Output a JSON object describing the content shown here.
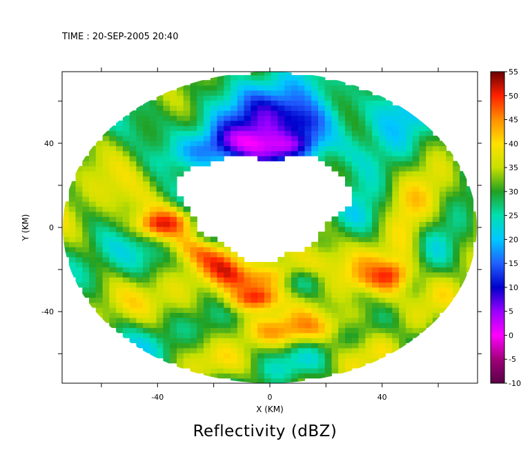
{
  "header": {
    "time_label": "TIME : 20-SEP-2005 20:40"
  },
  "footer": {
    "title": "Reflectivity (dBZ)"
  },
  "chart_data": {
    "type": "heatmap",
    "title": "Reflectivity (dBZ)",
    "timestamp": "TIME : 20-SEP-2005 20:40",
    "xlabel": "X (KM)",
    "ylabel": "Y (KM)",
    "xlim": [
      -74,
      74
    ],
    "ylim": [
      -74,
      74
    ],
    "x_ticks": [
      -40,
      0,
      40
    ],
    "y_ticks": [
      -40,
      0,
      40
    ],
    "colorbar": {
      "label": "Reflectivity (dBZ)",
      "min": -10,
      "max": 55,
      "ticks": [
        55,
        50,
        45,
        40,
        35,
        30,
        25,
        20,
        15,
        10,
        5,
        0,
        -5,
        -10
      ],
      "stops": [
        {
          "value": -10,
          "color": "#5a0046"
        },
        {
          "value": -5,
          "color": "#a0007a"
        },
        {
          "value": 0,
          "color": "#ff00ff"
        },
        {
          "value": 5,
          "color": "#9900ff"
        },
        {
          "value": 10,
          "color": "#0000cc"
        },
        {
          "value": 15,
          "color": "#2060ff"
        },
        {
          "value": 20,
          "color": "#00c8ff"
        },
        {
          "value": 25,
          "color": "#00e0b0"
        },
        {
          "value": 30,
          "color": "#22a022"
        },
        {
          "value": 35,
          "color": "#c8e000"
        },
        {
          "value": 40,
          "color": "#ffe000"
        },
        {
          "value": 45,
          "color": "#ff9000"
        },
        {
          "value": 50,
          "color": "#ff2000"
        },
        {
          "value": 55,
          "color": "#6a0000"
        }
      ]
    },
    "radar_range_km": 74,
    "blank_eye_center_km": [
      -2,
      11
    ],
    "features": [
      {
        "name": "eyewall maximum",
        "x": -5,
        "y": -33,
        "value": 52
      },
      {
        "name": "western eyewall core",
        "x": -38,
        "y": 2,
        "value": 53
      },
      {
        "name": "southeastern rainband",
        "x": 38,
        "y": -22,
        "value": 47
      },
      {
        "name": "northern weak echo",
        "x": 10,
        "y": 50,
        "value": 10
      }
    ]
  }
}
